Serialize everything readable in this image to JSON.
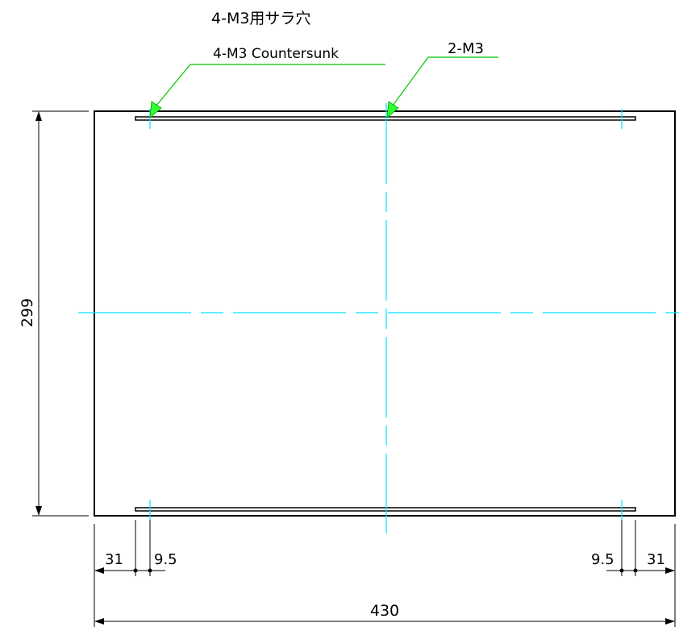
{
  "drawing": {
    "callout_jp": "4-M3用サラ穴",
    "callout_en": "4-M3 Countersunk",
    "callout_right": "2-M3"
  },
  "dimensions": {
    "height": "299",
    "width": "430",
    "left_offset": "31",
    "left_hole": "9.5",
    "right_hole": "9.5",
    "right_offset": "31"
  },
  "colors": {
    "outline": "#000000",
    "centerline": "#00e5ff",
    "leader": "#00c800",
    "arrow_fill": "#33ff33"
  }
}
